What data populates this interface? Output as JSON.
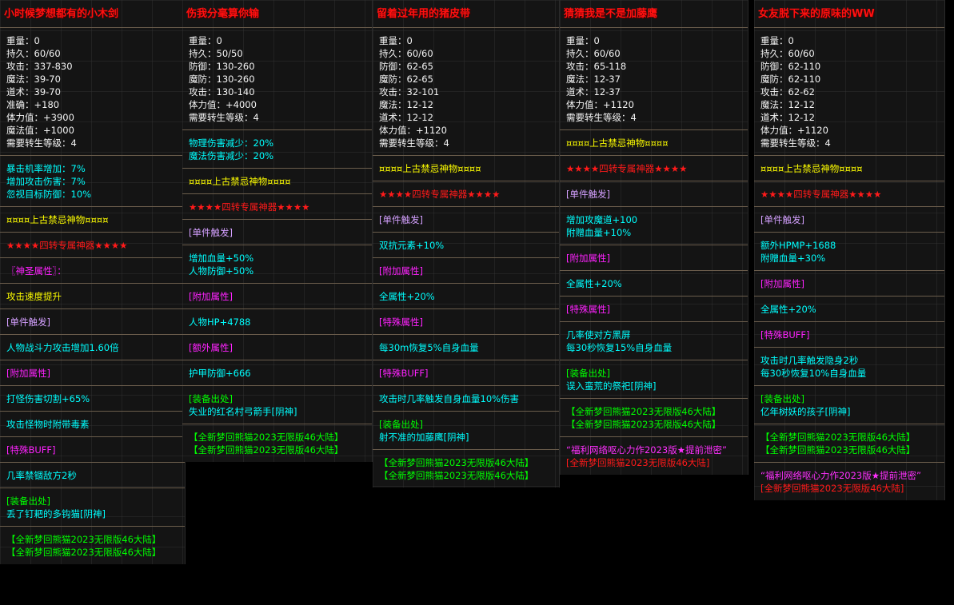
{
  "colors": {
    "white": "#f4f4f4",
    "cyan": "#00ffff",
    "yellow": "#ffff00",
    "red": "#ff1a1a",
    "lilac": "#d4a0ff",
    "magenta": "#ff22ff",
    "green": "#00ff00",
    "pink": "#ff30ff",
    "divider": "#6b5d4c"
  },
  "panels": [
    {
      "title": "小时候梦想都有的小木剑",
      "sections": [
        [
          [
            "重量：0",
            "white"
          ],
          [
            "持久：60/60",
            "white"
          ],
          [
            "攻击：337-830",
            "white"
          ],
          [
            "魔法：39-70",
            "white"
          ],
          [
            "道术：39-70",
            "white"
          ],
          [
            "准确：+180",
            "white"
          ],
          [
            "体力值：+3900",
            "white"
          ],
          [
            "魔法值：+1000",
            "white"
          ],
          [
            "需要转生等级：4",
            "white"
          ]
        ],
        [
          [
            "暴击机率增加：7%",
            "cyan"
          ],
          [
            "增加攻击伤害：7%",
            "cyan"
          ],
          [
            "忽视目标防御：10%",
            "cyan"
          ]
        ],
        [
          [
            "¤¤¤¤上古禁忌神物¤¤¤¤",
            "yellow"
          ]
        ],
        [
          [
            "★★★★四转专属神器★★★★",
            "red"
          ]
        ],
        [
          [
            "〖神圣属性〗：",
            "magenta"
          ]
        ],
        [
          [
            "攻击速度提升",
            "yellow"
          ]
        ],
        [
          [
            "[单件触发]",
            "lilac"
          ]
        ],
        [
          [
            "人物战斗力攻击增加1.60倍",
            "cyan"
          ]
        ],
        [
          [
            "[附加属性]",
            "magenta"
          ]
        ],
        [
          [
            "打怪伤害切割+65%",
            "cyan"
          ]
        ],
        [
          [
            "攻击怪物时附带毒素",
            "cyan"
          ]
        ],
        [
          [
            "[特殊BUFF]",
            "magenta"
          ]
        ],
        [
          [
            "几率禁锢敌方2秒",
            "cyan"
          ]
        ],
        [
          [
            "[装备出处]",
            "green"
          ],
          [
            "丢了钉耙的多钩猫[阴神]",
            "cyan"
          ]
        ],
        [
          [
            "【全新梦回熊猫2023无限版46大陆】",
            "green"
          ],
          [
            "【全新梦回熊猫2023无限版46大陆】",
            "green"
          ]
        ]
      ]
    },
    {
      "title": "伤我分毫算你输",
      "sections": [
        [
          [
            "重量：0",
            "white"
          ],
          [
            "持久：50/50",
            "white"
          ],
          [
            "防御：130-260",
            "white"
          ],
          [
            "魔防：130-260",
            "white"
          ],
          [
            "攻击：130-140",
            "white"
          ],
          [
            "体力值：+4000",
            "white"
          ],
          [
            "需要转生等级：4",
            "white"
          ]
        ],
        [
          [
            "物理伤害减少：20%",
            "cyan"
          ],
          [
            "魔法伤害减少：20%",
            "cyan"
          ]
        ],
        [
          [
            "¤¤¤¤上古禁忌神物¤¤¤¤",
            "yellow"
          ]
        ],
        [
          [
            "★★★★四转专属神器★★★★",
            "red"
          ]
        ],
        [
          [
            "[单件触发]",
            "lilac"
          ]
        ],
        [
          [
            "增加血量+50%",
            "cyan"
          ],
          [
            "人物防御+50%",
            "cyan"
          ]
        ],
        [
          [
            "[附加属性]",
            "magenta"
          ]
        ],
        [
          [
            "人物HP+4788",
            "cyan"
          ]
        ],
        [
          [
            "[额外属性]",
            "magenta"
          ]
        ],
        [
          [
            "护甲防御+666",
            "cyan"
          ]
        ],
        [
          [
            "[装备出处]",
            "green"
          ],
          [
            "失业的红名村弓箭手[阴神]",
            "cyan"
          ]
        ],
        [
          [
            "【全新梦回熊猫2023无限版46大陆】",
            "green"
          ],
          [
            "【全新梦回熊猫2023无限版46大陆】",
            "green"
          ]
        ]
      ]
    },
    {
      "title": "留着过年用的猪皮带",
      "sections": [
        [
          [
            "重量：0",
            "white"
          ],
          [
            "持久：60/60",
            "white"
          ],
          [
            "防御：62-65",
            "white"
          ],
          [
            "魔防：62-65",
            "white"
          ],
          [
            "攻击：32-101",
            "white"
          ],
          [
            "魔法：12-12",
            "white"
          ],
          [
            "道术：12-12",
            "white"
          ],
          [
            "体力值：+1120",
            "white"
          ],
          [
            "需要转生等级：4",
            "white"
          ]
        ],
        [
          [
            "¤¤¤¤上古禁忌神物¤¤¤¤",
            "yellow"
          ]
        ],
        [
          [
            "★★★★四转专属神器★★★★",
            "red"
          ]
        ],
        [
          [
            "[单件触发]",
            "lilac"
          ]
        ],
        [
          [
            "双抗元素+10%",
            "cyan"
          ]
        ],
        [
          [
            "[附加属性]",
            "magenta"
          ]
        ],
        [
          [
            "全属性+20%",
            "cyan"
          ]
        ],
        [
          [
            "[特殊属性]",
            "magenta"
          ]
        ],
        [
          [
            "每30m恢复5%自身血量",
            "cyan"
          ]
        ],
        [
          [
            "[特殊BUFF]",
            "magenta"
          ]
        ],
        [
          [
            "攻击时几率触发自身血量10%伤害",
            "cyan"
          ]
        ],
        [
          [
            "[装备出处]",
            "green"
          ],
          [
            "射不准的加藤鹰[阴神]",
            "cyan"
          ]
        ],
        [
          [
            "【全新梦回熊猫2023无限版46大陆】",
            "green"
          ],
          [
            "【全新梦回熊猫2023无限版46大陆】",
            "green"
          ]
        ]
      ]
    },
    {
      "title": "猜猜我是不是加藤鹰",
      "sections": [
        [
          [
            "重量：0",
            "white"
          ],
          [
            "持久：60/60",
            "white"
          ],
          [
            "攻击：65-118",
            "white"
          ],
          [
            "魔法：12-37",
            "white"
          ],
          [
            "道术：12-37",
            "white"
          ],
          [
            "体力值：+1120",
            "white"
          ],
          [
            "需要转生等级：4",
            "white"
          ]
        ],
        [
          [
            "¤¤¤¤上古禁忌神物¤¤¤¤",
            "yellow"
          ]
        ],
        [
          [
            "★★★★四转专属神器★★★★",
            "red"
          ]
        ],
        [
          [
            "[单件触发]",
            "lilac"
          ]
        ],
        [
          [
            "增加攻魔道+100",
            "cyan"
          ],
          [
            "附赠血量+10%",
            "cyan"
          ]
        ],
        [
          [
            "[附加属性]",
            "magenta"
          ]
        ],
        [
          [
            "全属性+20%",
            "cyan"
          ]
        ],
        [
          [
            "[特殊属性]",
            "magenta"
          ]
        ],
        [
          [
            "几率使对方黑屏",
            "cyan"
          ],
          [
            "每30秒恢复15%自身血量",
            "cyan"
          ]
        ],
        [
          [
            "[装备出处]",
            "green"
          ],
          [
            "误入蛮荒的祭祀[阴神]",
            "cyan"
          ]
        ],
        [
          [
            "【全新梦回熊猫2023无限版46大陆】",
            "green"
          ],
          [
            "【全新梦回熊猫2023无限版46大陆】",
            "green"
          ]
        ],
        [
          [
            "“福利网络呕心力作2023版★提前泄密”",
            "pink"
          ],
          [
            "[全新梦回熊猫2023无限版46大陆]",
            "red"
          ]
        ]
      ]
    },
    {
      "title": "女友脱下来的原味的WW",
      "sections": [
        [
          [
            "重量：0",
            "white"
          ],
          [
            "持久：60/60",
            "white"
          ],
          [
            "防御：62-110",
            "white"
          ],
          [
            "魔防：62-110",
            "white"
          ],
          [
            "攻击：62-62",
            "white"
          ],
          [
            "魔法：12-12",
            "white"
          ],
          [
            "道术：12-12",
            "white"
          ],
          [
            "体力值：+1120",
            "white"
          ],
          [
            "需要转生等级：4",
            "white"
          ]
        ],
        [
          [
            "¤¤¤¤上古禁忌神物¤¤¤¤",
            "yellow"
          ]
        ],
        [
          [
            "★★★★四转专属神器★★★★",
            "red"
          ]
        ],
        [
          [
            "[单件触发]",
            "lilac"
          ]
        ],
        [
          [
            "额外HPMP+1688",
            "cyan"
          ],
          [
            "附赠血量+30%",
            "cyan"
          ]
        ],
        [
          [
            "[附加属性]",
            "magenta"
          ]
        ],
        [
          [
            "全属性+20%",
            "cyan"
          ]
        ],
        [
          [
            "[特殊BUFF]",
            "magenta"
          ]
        ],
        [
          [
            "攻击时几率触发隐身2秒",
            "cyan"
          ],
          [
            "每30秒恢复10%自身血量",
            "cyan"
          ]
        ],
        [
          [
            "[装备出处]",
            "green"
          ],
          [
            "亿年树妖的孩子[阴神]",
            "cyan"
          ]
        ],
        [
          [
            "【全新梦回熊猫2023无限版46大陆】",
            "green"
          ],
          [
            "【全新梦回熊猫2023无限版46大陆】",
            "green"
          ]
        ],
        [
          [
            "“福利网络呕心力作2023版★提前泄密”",
            "pink"
          ],
          [
            "[全新梦回熊猫2023无限版46大陆]",
            "red"
          ]
        ]
      ]
    }
  ]
}
